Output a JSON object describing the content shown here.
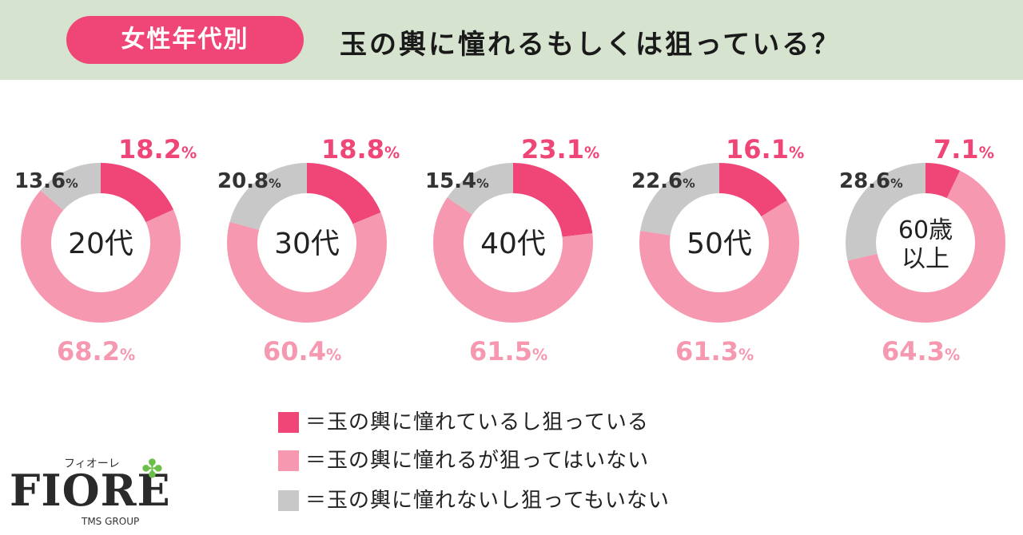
{
  "header": {
    "badge": "女性年代別",
    "title": "玉の輿に憧れるもしくは狙っている？"
  },
  "colors": {
    "aspire_and_aim": "#f04677",
    "aspire_not_aim": "#f598b0",
    "neither": "#c8c8c8",
    "header_bg": "#d5e3cf"
  },
  "chart_data": {
    "type": "pie",
    "variant": "donut",
    "series_keys": [
      "aspire_and_aim",
      "aspire_not_aim",
      "neither"
    ],
    "charts": [
      {
        "label": "20代",
        "values": [
          18.2,
          68.2,
          13.6
        ],
        "labels": [
          "18.2",
          "68.2",
          "13.6"
        ]
      },
      {
        "label": "30代",
        "values": [
          18.8,
          60.4,
          20.8
        ],
        "labels": [
          "18.8",
          "60.4",
          "20.8"
        ]
      },
      {
        "label": "40代",
        "values": [
          23.1,
          61.5,
          15.4
        ],
        "labels": [
          "23.1",
          "61.5",
          "15.4"
        ]
      },
      {
        "label": "50代",
        "values": [
          16.1,
          61.3,
          22.6
        ],
        "labels": [
          "16.1",
          "61.3",
          "22.6"
        ]
      },
      {
        "label": "60歳以上",
        "values": [
          7.1,
          64.3,
          28.6
        ],
        "labels": [
          "7.1",
          "64.3",
          "28.6"
        ]
      }
    ],
    "unit": "%"
  },
  "legend": [
    {
      "key": "aspire_and_aim",
      "text": "＝玉の輿に憧れているし狙っている"
    },
    {
      "key": "aspire_not_aim",
      "text": "＝玉の輿に憧れるが狙ってはいない"
    },
    {
      "key": "neither",
      "text": "＝玉の輿に憧れないし狙ってもいない"
    }
  ],
  "logo": {
    "kana": "フィオーレ",
    "word": "FIORE",
    "group": "TMS GROUP"
  }
}
